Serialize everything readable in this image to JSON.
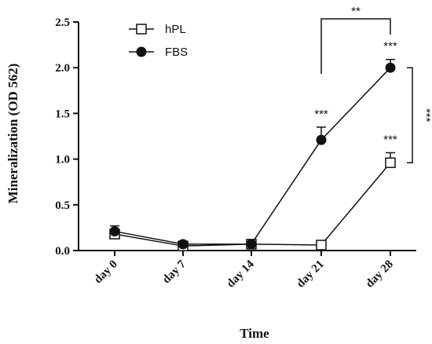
{
  "chart_data": {
    "type": "line",
    "xlabel": "Time",
    "ylabel": "Mineralization (OD 562)",
    "categories": [
      "day 0",
      "day 7",
      "day 14",
      "day 21",
      "day 28"
    ],
    "ylim": [
      0,
      2.5
    ],
    "yticks": [
      "0.0",
      "0.5",
      "1.0",
      "1.5",
      "2.0",
      "2.5"
    ],
    "grid": false,
    "legend_position": "top-left",
    "series": [
      {
        "name": "hPL",
        "marker": "open-square",
        "color": "#111111",
        "values": [
          0.18,
          0.05,
          0.07,
          0.06,
          0.96
        ],
        "errors": [
          0.03,
          0.01,
          0.01,
          0.01,
          0.11
        ]
      },
      {
        "name": "FBS",
        "marker": "filled-circle",
        "color": "#111111",
        "values": [
          0.21,
          0.07,
          0.07,
          1.21,
          2.0
        ],
        "errors": [
          0.06,
          0.02,
          0.01,
          0.14,
          0.09
        ]
      }
    ],
    "annotations": [
      {
        "text": "**",
        "type": "bracket-top",
        "between": [
          "day 21",
          "day 28"
        ]
      },
      {
        "text": "***",
        "type": "bracket-right",
        "between": [
          "hPL",
          "FBS"
        ],
        "at": "day 28"
      },
      {
        "text": "***",
        "type": "point-label",
        "series": "FBS",
        "category": "day 21"
      },
      {
        "text": "***",
        "type": "point-label",
        "series": "FBS",
        "category": "day 28"
      },
      {
        "text": "***",
        "type": "point-label",
        "series": "hPL",
        "category": "day 28"
      }
    ]
  }
}
